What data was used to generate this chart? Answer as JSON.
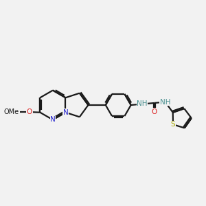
{
  "bg_color": "#f2f2f2",
  "bond_color": "#1a1a1a",
  "lw": 1.6,
  "atom_colors": {
    "N": "#2222cc",
    "O": "#dd2222",
    "S": "#aaaa00",
    "NH": "#4a9090",
    "C": "#1a1a1a"
  },
  "fs": 7.5,
  "fig_w": 3.0,
  "fig_h": 3.0,
  "dpi": 100,
  "xlim": [
    0.2,
    9.8
  ],
  "ylim": [
    3.2,
    7.8
  ]
}
